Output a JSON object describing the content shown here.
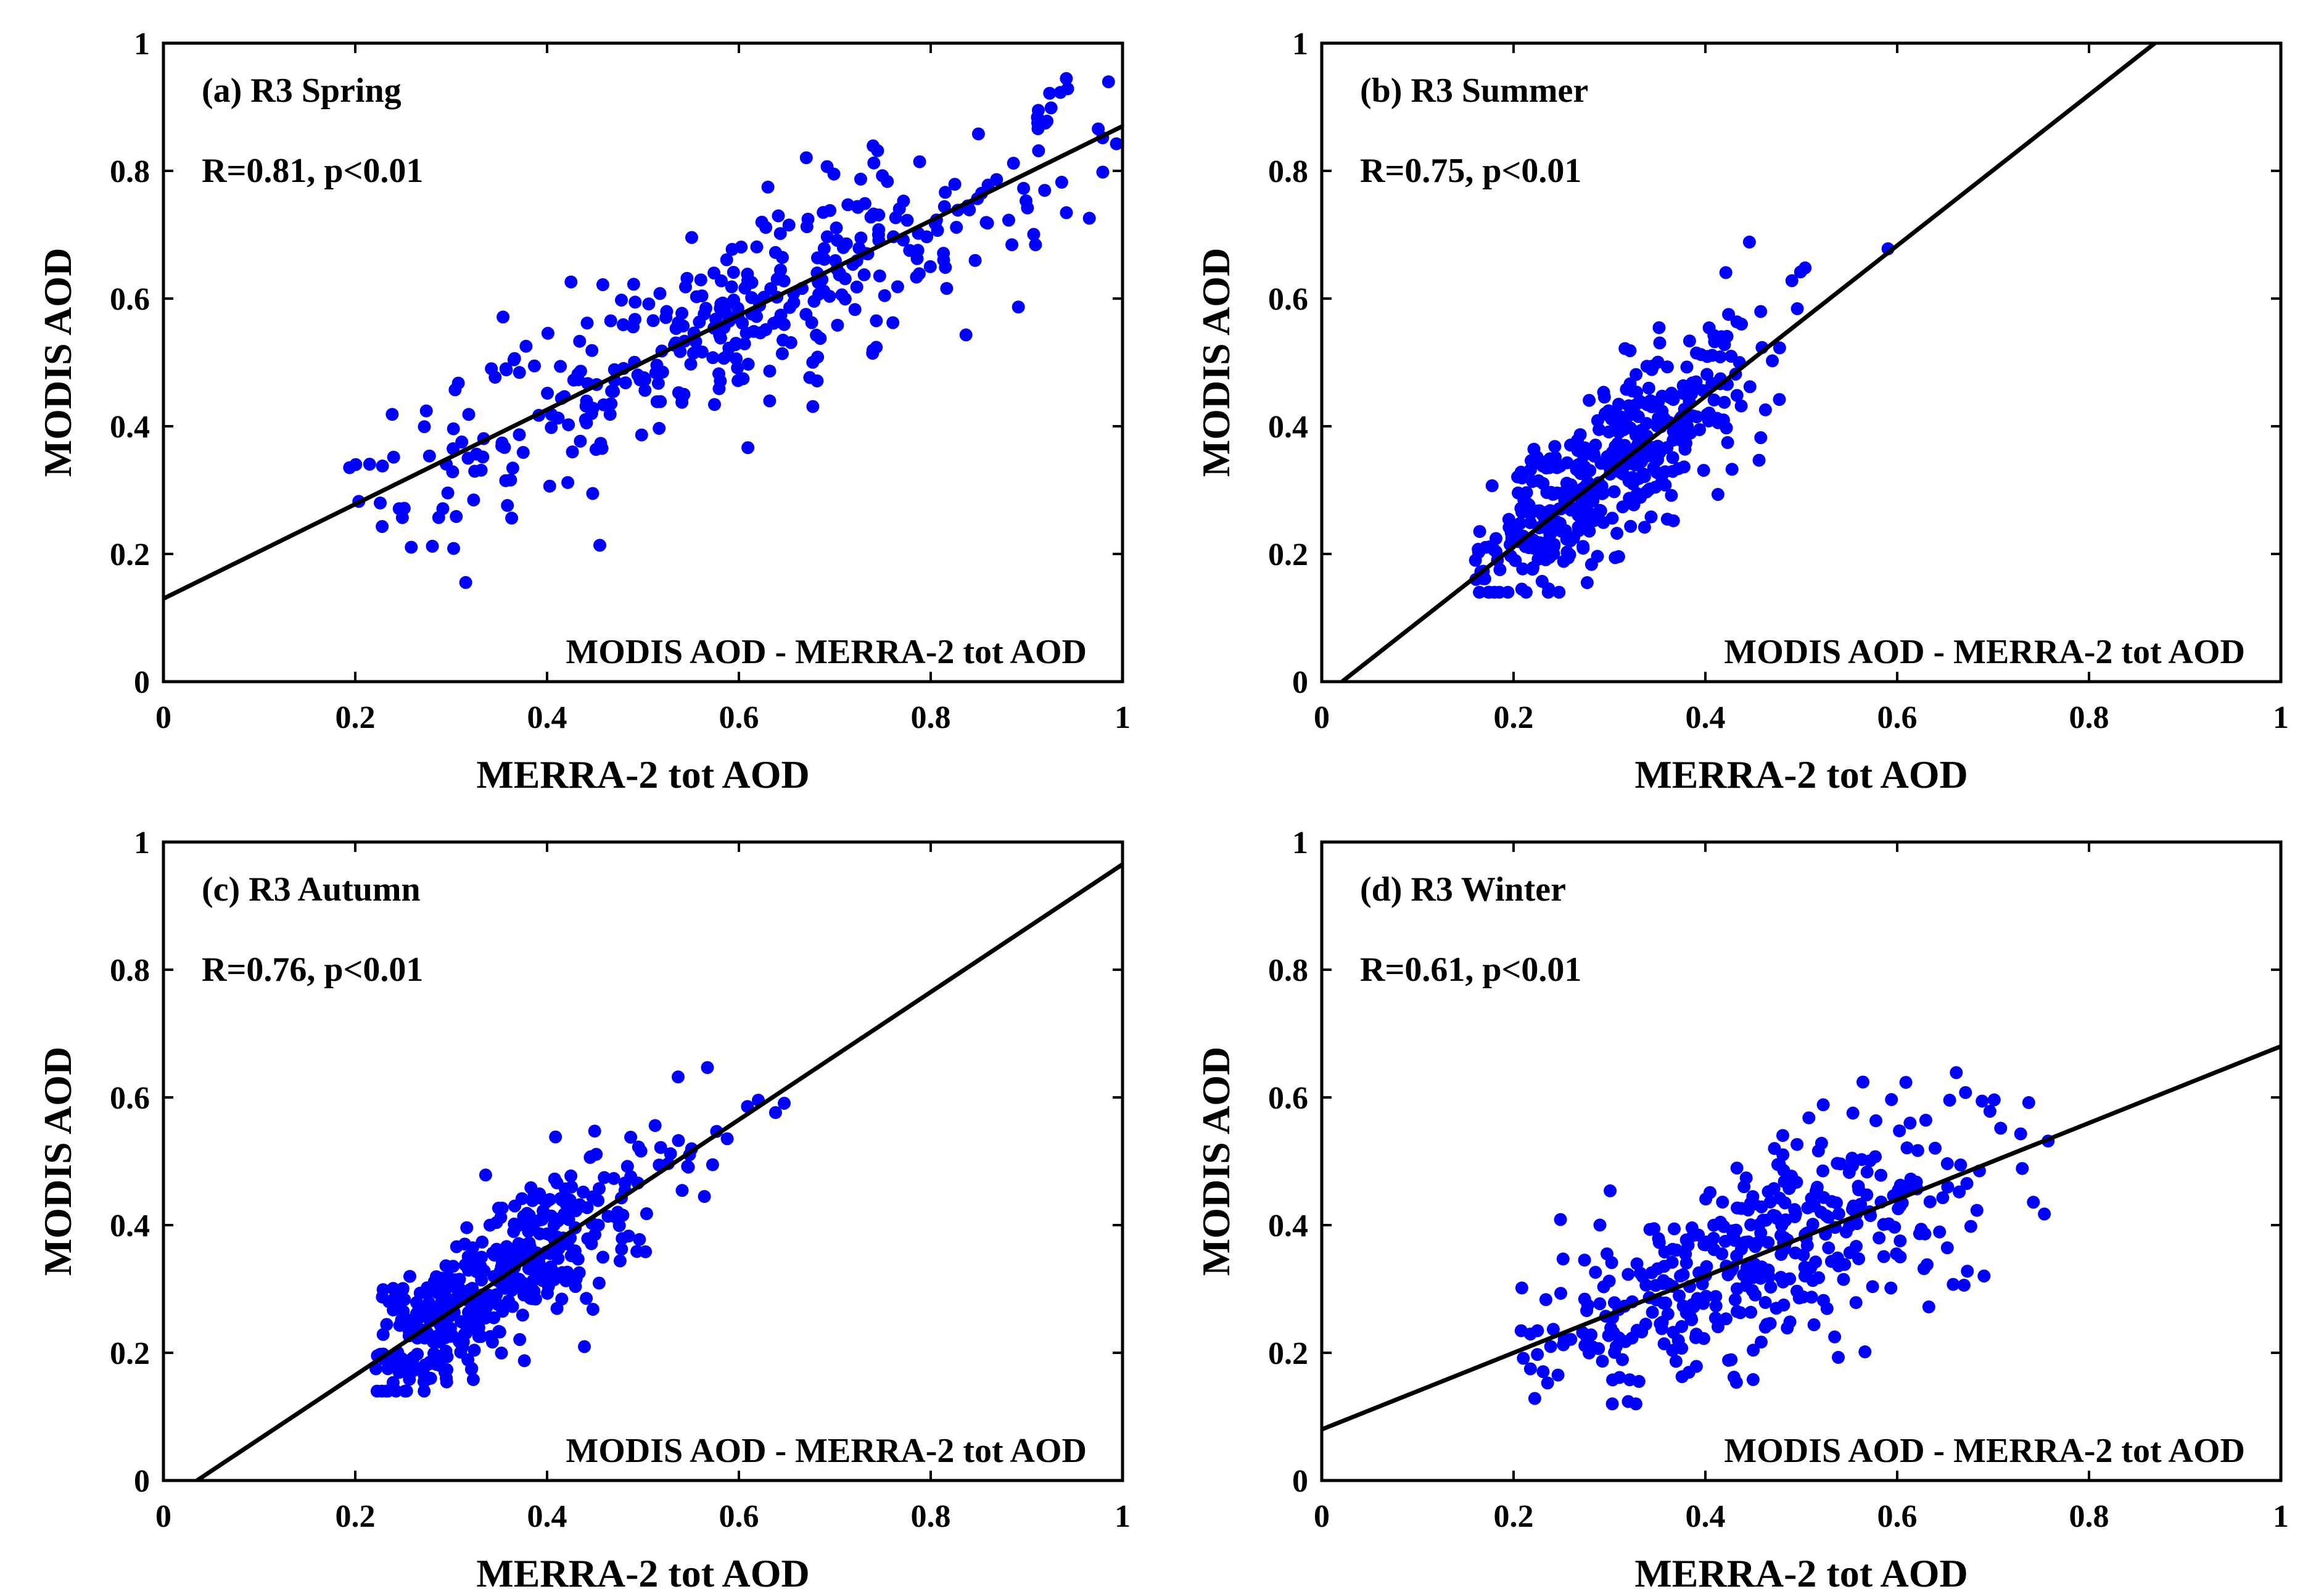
{
  "colors": {
    "points": "#0000ff",
    "fit_line": "#000000",
    "axes": "#000000",
    "background": "#ffffff"
  },
  "chart_data": [
    {
      "id": "a",
      "type": "scatter",
      "title": "(a) R3 Spring",
      "stats": "R=0.81, p<0.01",
      "annotation": "MODIS AOD - MERRA-2 tot AOD",
      "xlabel": "MERRA-2 tot AOD",
      "ylabel": "MODIS AOD",
      "xlim": [
        0,
        1
      ],
      "ylim": [
        0,
        1
      ],
      "xticks": [
        "0",
        "0.2",
        "0.4",
        "0.6",
        "0.8",
        "1"
      ],
      "yticks": [
        "0",
        "0.2",
        "0.4",
        "0.6",
        "0.8",
        "1"
      ],
      "fit": {
        "slope": 0.74,
        "intercept": 0.13
      },
      "point_cloud": {
        "n": 380,
        "x_range": [
          0.19,
          1.0
        ],
        "y_noise": 0.075,
        "y_clip": [
          0.15,
          1.0
        ],
        "x_center": 0.6,
        "x_spread": 0.2
      }
    },
    {
      "id": "b",
      "type": "scatter",
      "title": "(b) R3 Summer",
      "stats": "R=0.75, p<0.01",
      "annotation": "MODIS AOD - MERRA-2 tot AOD",
      "xlabel": "MERRA-2 tot AOD",
      "ylabel": "MODIS AOD",
      "xlim": [
        0,
        1
      ],
      "ylim": [
        0,
        1
      ],
      "xticks": [
        "0",
        "0.2",
        "0.4",
        "0.6",
        "0.8",
        "1"
      ],
      "yticks": [
        "0",
        "0.2",
        "0.4",
        "0.6",
        "0.8",
        "1"
      ],
      "fit": {
        "slope": 1.18,
        "intercept": -0.025
      },
      "point_cloud": {
        "n": 420,
        "x_range": [
          0.16,
          0.6
        ],
        "y_noise": 0.07,
        "y_clip": [
          0.14,
          0.86
        ],
        "x_center": 0.3,
        "x_spread": 0.08
      }
    },
    {
      "id": "c",
      "type": "scatter",
      "title": "(c) R3 Autumn",
      "stats": "R=0.76, p<0.01",
      "annotation": "MODIS AOD - MERRA-2 tot AOD",
      "xlabel": "MERRA-2 tot AOD",
      "ylabel": "MODIS AOD",
      "xlim": [
        0,
        1
      ],
      "ylim": [
        0,
        1
      ],
      "xticks": [
        "0",
        "0.2",
        "0.4",
        "0.6",
        "0.8",
        "1"
      ],
      "yticks": [
        "0",
        "0.2",
        "0.4",
        "0.6",
        "0.8",
        "1"
      ],
      "fit": {
        "slope": 1.0,
        "intercept": -0.035
      },
      "point_cloud": {
        "n": 440,
        "x_range": [
          0.22,
          0.67
        ],
        "y_noise": 0.055,
        "y_clip": [
          0.14,
          0.7
        ],
        "x_center": 0.34,
        "x_spread": 0.08
      }
    },
    {
      "id": "d",
      "type": "scatter",
      "title": "(d) R3 Winter",
      "stats": "R=0.61, p<0.01",
      "annotation": "MODIS AOD - MERRA-2 tot AOD",
      "xlabel": "MERRA-2 tot AOD",
      "ylabel": "MODIS AOD",
      "xlim": [
        0,
        1
      ],
      "ylim": [
        0,
        1
      ],
      "xticks": [
        "0",
        "0.2",
        "0.4",
        "0.6",
        "0.8",
        "1"
      ],
      "yticks": [
        "0",
        "0.2",
        "0.4",
        "0.6",
        "0.8",
        "1"
      ],
      "fit": {
        "slope": 0.6,
        "intercept": 0.08
      },
      "point_cloud": {
        "n": 400,
        "x_range": [
          0.2,
          0.76
        ],
        "y_noise": 0.08,
        "y_clip": [
          0.12,
          0.7
        ],
        "x_center": 0.45,
        "x_spread": 0.12
      }
    }
  ]
}
